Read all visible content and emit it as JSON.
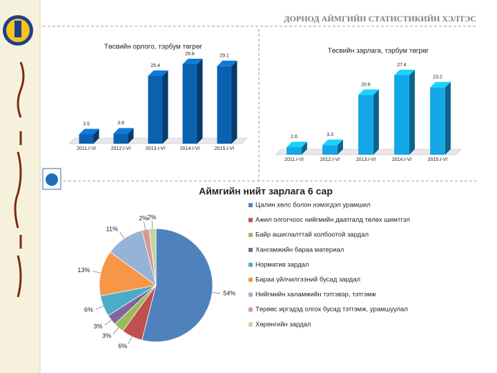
{
  "header": {
    "title": "ДОРНОД АЙМГИЙН СТАТИСТИКИЙН ХЭЛТЭС"
  },
  "chart_data": [
    {
      "type": "bar",
      "title": "Төсвийн орлого, тэрбум төгрөг",
      "categories": [
        "2011.I-VI",
        "2012.I-VI",
        "2013.I-VI",
        "2014.I-VI",
        "2015.I-VI"
      ],
      "values": [
        3.5,
        3.8,
        25.4,
        29.8,
        29.1
      ],
      "color": "#0b62b0"
    },
    {
      "type": "bar",
      "title": "Төсвийн зарлага, тэрбум төгрөг",
      "categories": [
        "2011.I-VI",
        "2012.I-VI",
        "2013.I-VI",
        "2014.I-VI",
        "2015.I-VI"
      ],
      "values": [
        2.6,
        3.3,
        20.6,
        27.4,
        23.2
      ],
      "color": "#14a7e8"
    },
    {
      "type": "pie",
      "title": "Аймгийн нийт зарлага 6 сар",
      "categories": [
        "Цалин хөлс болон нэмэгдэл урамшил",
        "Ажил олгогчоос нийгмийн даатгалд төлөх шимтгэл",
        "Байр ашиглалттай холбоотой зардал",
        "Хангамжийн бараа материал",
        "Норматив зардал",
        "Бараа үйлчилгээний бусад зардал",
        "Нийгмийн халамжийн тэтгэвэр, тэтгэмж",
        "Төрөөс иргэдэд олгох бусад тэтгэмж, урамшуулал",
        "Хөрөнгийн зардал"
      ],
      "values": [
        54,
        6,
        3,
        3,
        6,
        13,
        11,
        2,
        2
      ],
      "value_labels": [
        "54%",
        "6%",
        "3%",
        "3%",
        "6%",
        "13%",
        "11%",
        "2%",
        "2%"
      ],
      "colors": [
        "#4f81bd",
        "#c0504d",
        "#9bbb59",
        "#8064a2",
        "#4bacc6",
        "#f79646",
        "#95b3d7",
        "#d99694",
        "#c3d69b"
      ]
    }
  ]
}
